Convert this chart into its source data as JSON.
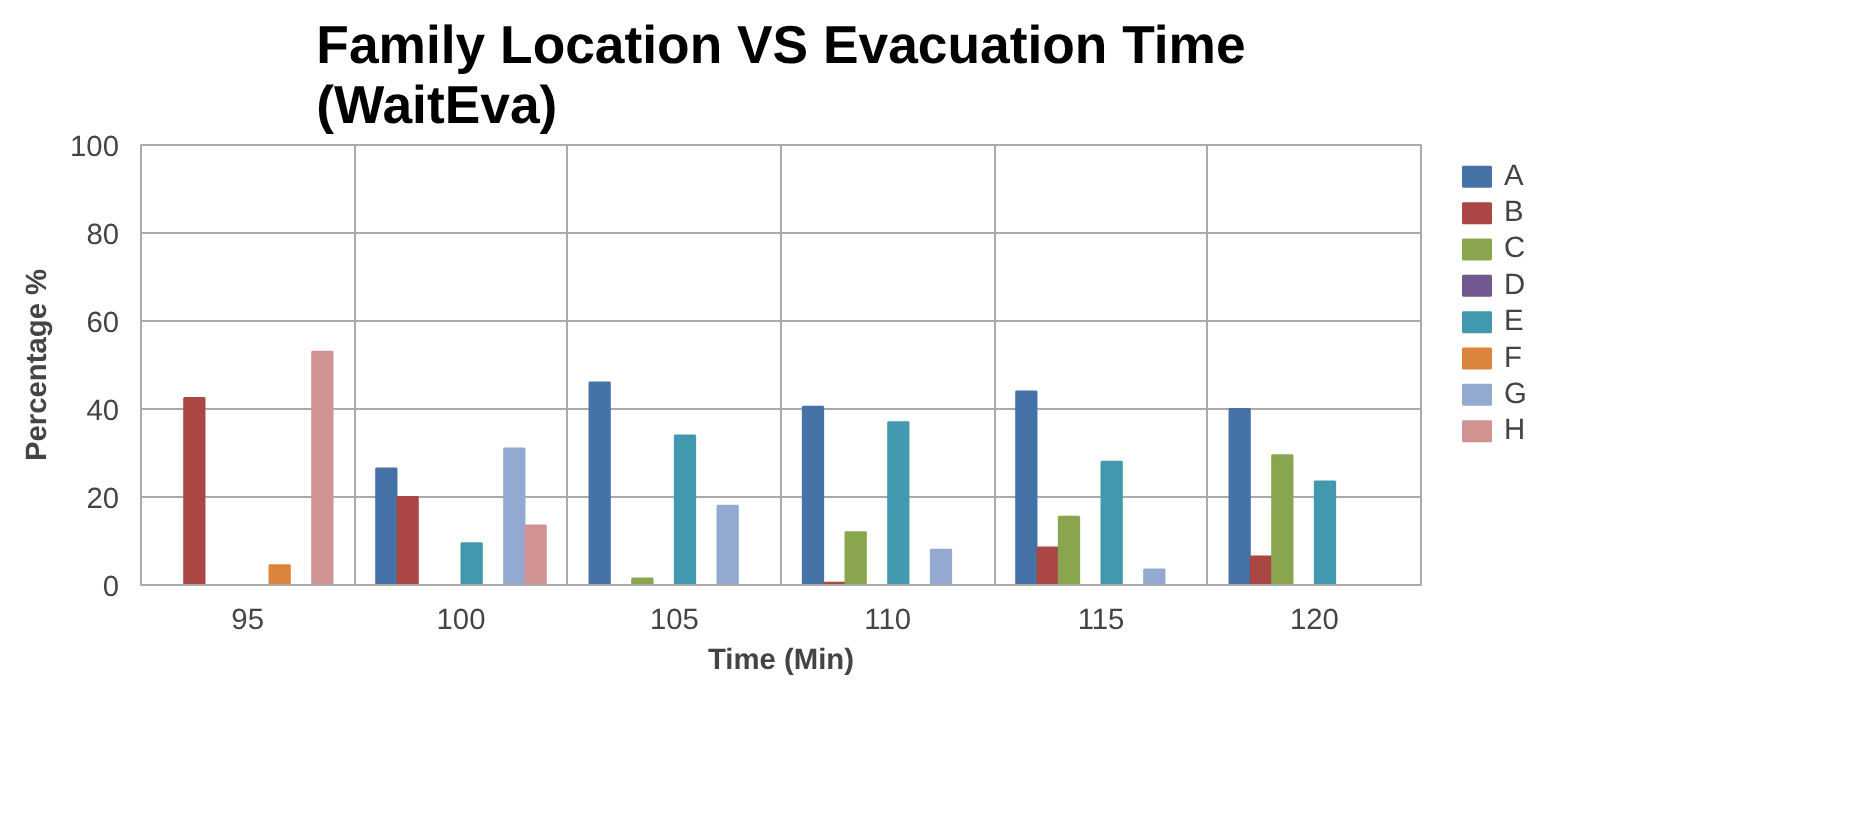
{
  "chart_data": {
    "type": "bar",
    "title": "Family Location VS Evacuation Time\n(WaitEva)",
    "xlabel": "Time (Min)",
    "ylabel": "Percentage %",
    "categories": [
      "95",
      "100",
      "105",
      "110",
      "115",
      "120"
    ],
    "series": [
      {
        "name": "A",
        "color": "#4572a7",
        "values": [
          0,
          26.5,
          46,
          40.5,
          44,
          40
        ]
      },
      {
        "name": "B",
        "color": "#aa4643",
        "values": [
          42.5,
          20,
          0,
          0.5,
          8.5,
          6.5
        ]
      },
      {
        "name": "C",
        "color": "#89a54e",
        "values": [
          0,
          0,
          1.5,
          12,
          15.5,
          29.5
        ]
      },
      {
        "name": "D",
        "color": "#71588f",
        "values": [
          0,
          0,
          0,
          0,
          0,
          0
        ]
      },
      {
        "name": "E",
        "color": "#4198af",
        "values": [
          0,
          9.5,
          34,
          37,
          28,
          23.5
        ]
      },
      {
        "name": "F",
        "color": "#db843d",
        "values": [
          4.5,
          0,
          0,
          0,
          0,
          0
        ]
      },
      {
        "name": "G",
        "color": "#93a9cf",
        "values": [
          0,
          31,
          18,
          8,
          3.5,
          0
        ]
      },
      {
        "name": "H",
        "color": "#d19392",
        "values": [
          53,
          13.5,
          0,
          0,
          0,
          0
        ]
      }
    ],
    "ylim": [
      0,
      100
    ],
    "yticks": [
      0,
      20,
      40,
      60,
      80,
      100
    ],
    "grid": true,
    "legend": "right"
  }
}
